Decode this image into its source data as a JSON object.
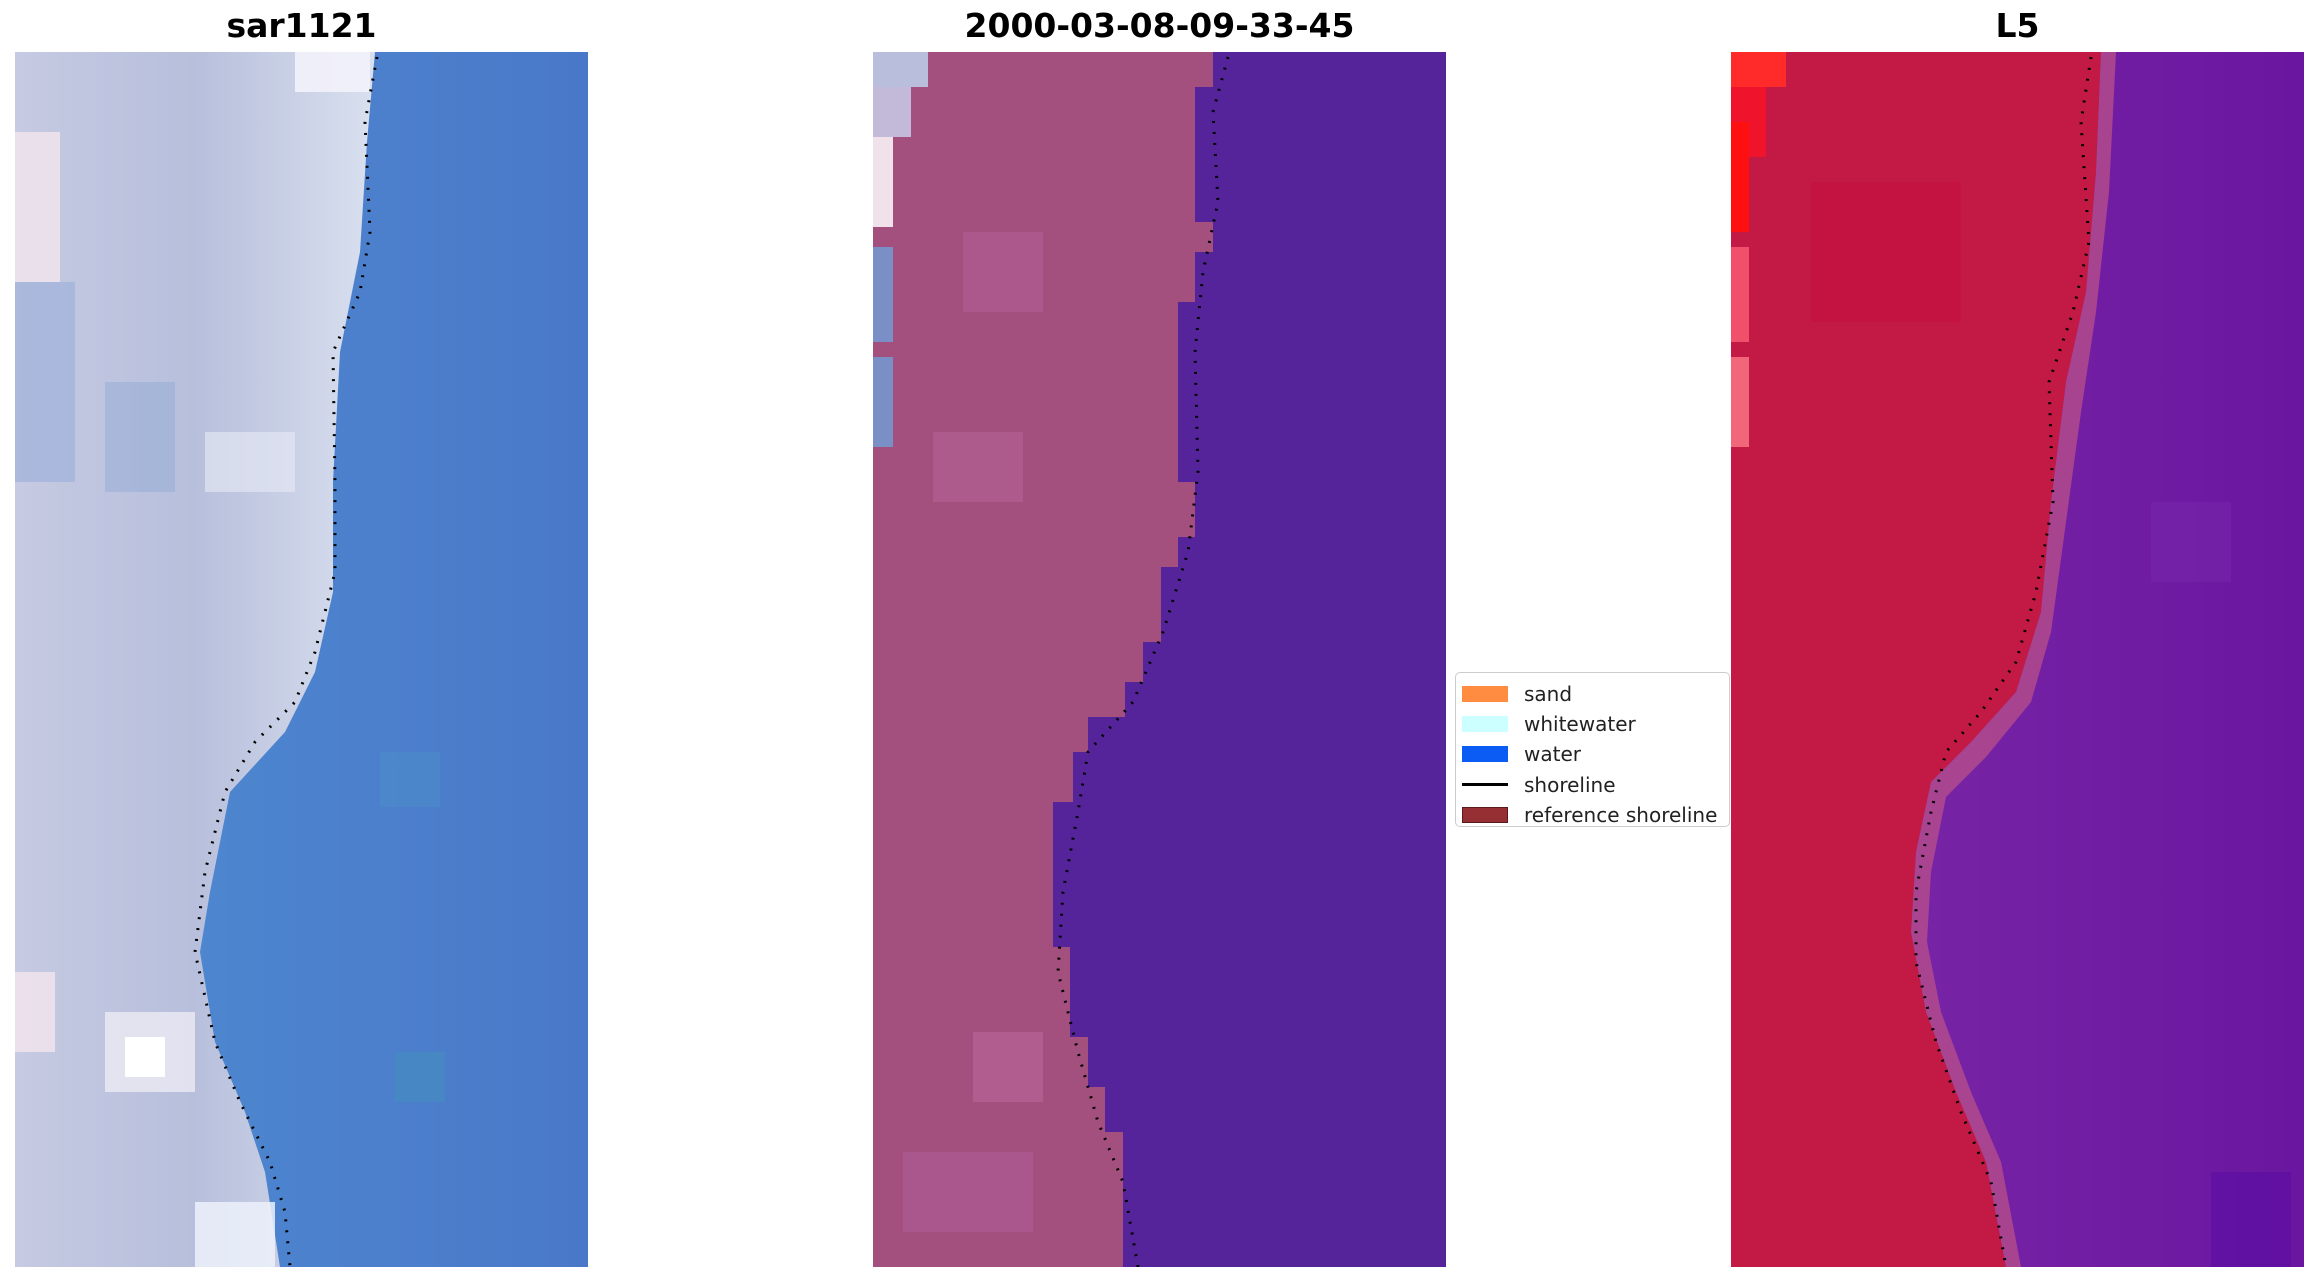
{
  "panels": [
    {
      "id": "sar",
      "title": "sar1121"
    },
    {
      "id": "date",
      "title": "2000-03-08-09-33-45"
    },
    {
      "id": "l5",
      "title": "L5"
    }
  ],
  "legend": {
    "items": [
      {
        "label": "sand",
        "color": "#ff8c40",
        "kind": "patch"
      },
      {
        "label": "whitewater",
        "color": "#ccffff",
        "kind": "patch"
      },
      {
        "label": "water",
        "color": "#0a5cf5",
        "kind": "patch"
      },
      {
        "label": "shoreline",
        "color": "#000000",
        "kind": "line"
      },
      {
        "label": "reference shoreline",
        "color": "#952f33",
        "kind": "patch"
      }
    ]
  },
  "colors": {
    "sar_land": "#bcc4dd",
    "sar_water": "#4d82cc",
    "class_land": "#a4507f",
    "class_water": "#56249a",
    "class_light": "#b9bedc",
    "l5_land": "#c21a45",
    "l5_water": "#6f1fa3",
    "l5_bright_red": "#ff2a2a",
    "shoreline_dots": "#000000"
  }
}
